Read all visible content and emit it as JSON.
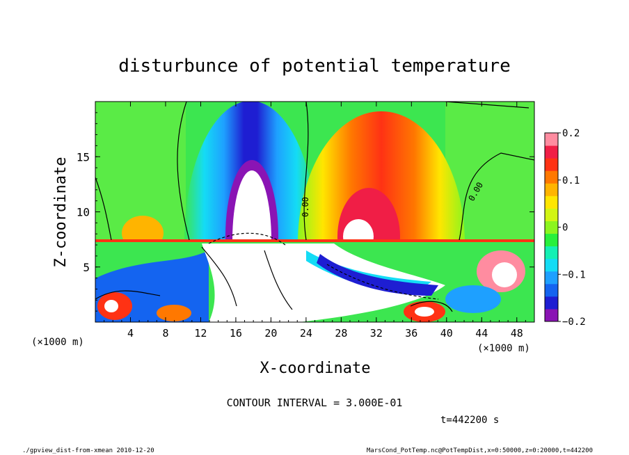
{
  "chart_data": {
    "type": "heatmap",
    "title": "disturbunce of potential temperature",
    "xlabel": "X-coordinate",
    "ylabel": "Z-coordinate",
    "x_unit_left": "(×1000 m)",
    "x_unit_right": "(×1000 m)",
    "xlim": [
      0,
      50
    ],
    "ylim": [
      0,
      20
    ],
    "x_ticks": [
      4,
      8,
      12,
      16,
      20,
      24,
      28,
      32,
      36,
      40,
      44,
      48
    ],
    "x_tick_labels": [
      "4",
      "8",
      "12",
      "16",
      "20",
      "24",
      "28",
      "32",
      "36",
      "40",
      "44",
      "48"
    ],
    "y_ticks": [
      5,
      10,
      15
    ],
    "y_tick_labels": [
      "5",
      "10",
      "15"
    ],
    "colorbar": {
      "range": [
        -0.2,
        0.2
      ],
      "ticks": [
        0.2,
        0.1,
        0,
        -0.1,
        -0.2
      ],
      "tick_labels": [
        "0.2",
        "0.1",
        "0",
        "−0.1",
        "−0.2"
      ]
    },
    "contour_labels": [
      "0.00",
      "0.00"
    ],
    "contour_interval": "CONTOUR INTERVAL = 3.000E-01",
    "time": "t=442200 s"
  },
  "footer": {
    "left": "./gpview_dist-from-xmean  2010-12-20",
    "right": "MarsCond_PotTemp.nc@PotTempDist,x=0:50000,z=0:20000,t=442200"
  },
  "colors": {
    "scale": [
      "#8a14b4",
      "#1e1ed2",
      "#1464f0",
      "#1ea0ff",
      "#14dcf5",
      "#14f0b4",
      "#28f03c",
      "#8cf51e",
      "#d2f514",
      "#ffe600",
      "#ffb400",
      "#ff7800",
      "#ff3214",
      "#f01e46",
      "#ff8ca0"
    ],
    "background_field": "#3ce650",
    "negative_lobe": "#2828dc",
    "positive_lobe": "#f03c28",
    "saturated": "#ffffff"
  }
}
